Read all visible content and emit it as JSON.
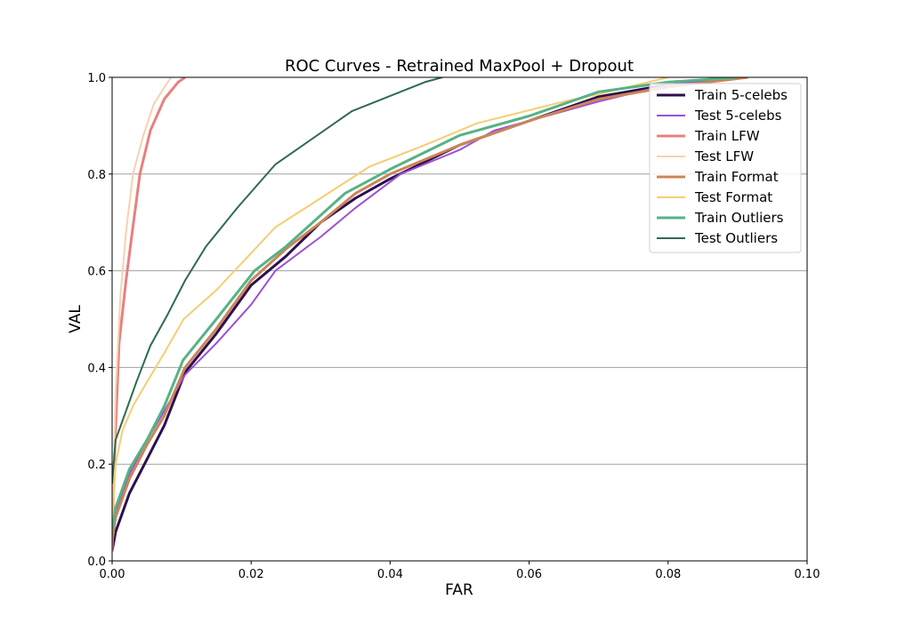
{
  "chart_data": {
    "type": "line",
    "title": "ROC Curves - Retrained MaxPool + Dropout",
    "xlabel": "FAR",
    "ylabel": "VAL",
    "xlim": [
      0.0,
      0.1
    ],
    "ylim": [
      0.0,
      1.0
    ],
    "xticks": [
      "0.00",
      "0.02",
      "0.04",
      "0.06",
      "0.08",
      "0.10"
    ],
    "yticks": [
      "0.0",
      "0.2",
      "0.4",
      "0.6",
      "0.8",
      "1.0"
    ],
    "grid": "horizontal",
    "legend_position": "top-right",
    "series": [
      {
        "name": "Train 5-celebs",
        "color": "#2d0f4f",
        "width": 3,
        "points": [
          [
            0,
            0.02
          ],
          [
            0.0005,
            0.06
          ],
          [
            0.0025,
            0.14
          ],
          [
            0.005,
            0.21
          ],
          [
            0.0075,
            0.28
          ],
          [
            0.0105,
            0.39
          ],
          [
            0.015,
            0.47
          ],
          [
            0.02,
            0.57
          ],
          [
            0.025,
            0.63
          ],
          [
            0.03,
            0.7
          ],
          [
            0.035,
            0.75
          ],
          [
            0.04,
            0.79
          ],
          [
            0.05,
            0.86
          ],
          [
            0.06,
            0.91
          ],
          [
            0.07,
            0.96
          ],
          [
            0.08,
            0.985
          ],
          [
            0.09,
            1.0
          ]
        ]
      },
      {
        "name": "Test 5-celebs",
        "color": "#9b4fd6",
        "width": 2,
        "points": [
          [
            0,
            0.03
          ],
          [
            0.0005,
            0.1
          ],
          [
            0.0025,
            0.18
          ],
          [
            0.005,
            0.25
          ],
          [
            0.0075,
            0.31
          ],
          [
            0.0105,
            0.385
          ],
          [
            0.015,
            0.45
          ],
          [
            0.02,
            0.53
          ],
          [
            0.0235,
            0.6
          ],
          [
            0.03,
            0.67
          ],
          [
            0.035,
            0.73
          ],
          [
            0.0415,
            0.8
          ],
          [
            0.05,
            0.85
          ],
          [
            0.055,
            0.89
          ],
          [
            0.07,
            0.95
          ],
          [
            0.08,
            0.985
          ],
          [
            0.09,
            1.0
          ]
        ]
      },
      {
        "name": "Train LFW",
        "color": "#e88080",
        "width": 3,
        "points": [
          [
            0,
            0.02
          ],
          [
            0.0003,
            0.2
          ],
          [
            0.001,
            0.45
          ],
          [
            0.002,
            0.58
          ],
          [
            0.0028,
            0.67
          ],
          [
            0.004,
            0.8
          ],
          [
            0.0055,
            0.89
          ],
          [
            0.0075,
            0.955
          ],
          [
            0.0095,
            0.99
          ],
          [
            0.0105,
            1.0
          ]
        ]
      },
      {
        "name": "Test LFW",
        "color": "#f5d2b0",
        "width": 2,
        "points": [
          [
            0,
            0.05
          ],
          [
            0.0005,
            0.35
          ],
          [
            0.0012,
            0.55
          ],
          [
            0.002,
            0.68
          ],
          [
            0.003,
            0.8
          ],
          [
            0.0045,
            0.88
          ],
          [
            0.006,
            0.945
          ],
          [
            0.008,
            0.99
          ],
          [
            0.0085,
            1.0
          ]
        ]
      },
      {
        "name": "Train Format",
        "color": "#cc8558",
        "width": 3,
        "points": [
          [
            0,
            0.04
          ],
          [
            0.0005,
            0.09
          ],
          [
            0.0025,
            0.17
          ],
          [
            0.005,
            0.24
          ],
          [
            0.0075,
            0.3
          ],
          [
            0.0105,
            0.4
          ],
          [
            0.015,
            0.48
          ],
          [
            0.02,
            0.58
          ],
          [
            0.025,
            0.645
          ],
          [
            0.03,
            0.7
          ],
          [
            0.035,
            0.76
          ],
          [
            0.04,
            0.8
          ],
          [
            0.05,
            0.86
          ],
          [
            0.06,
            0.91
          ],
          [
            0.07,
            0.955
          ],
          [
            0.08,
            0.98
          ],
          [
            0.0915,
            1.0
          ]
        ]
      },
      {
        "name": "Test Format",
        "color": "#f7cd72",
        "width": 2,
        "points": [
          [
            0,
            0.07
          ],
          [
            0.0005,
            0.2
          ],
          [
            0.0015,
            0.27
          ],
          [
            0.003,
            0.32
          ],
          [
            0.005,
            0.37
          ],
          [
            0.0075,
            0.43
          ],
          [
            0.0103,
            0.5
          ],
          [
            0.015,
            0.56
          ],
          [
            0.0235,
            0.69
          ],
          [
            0.03,
            0.75
          ],
          [
            0.037,
            0.815
          ],
          [
            0.045,
            0.86
          ],
          [
            0.0525,
            0.905
          ],
          [
            0.065,
            0.95
          ],
          [
            0.07,
            0.965
          ],
          [
            0.08,
            1.0
          ]
        ]
      },
      {
        "name": "Train Outliers",
        "color": "#55b386",
        "width": 3,
        "points": [
          [
            0,
            0.06
          ],
          [
            0.0005,
            0.11
          ],
          [
            0.0025,
            0.19
          ],
          [
            0.005,
            0.25
          ],
          [
            0.0075,
            0.32
          ],
          [
            0.0102,
            0.415
          ],
          [
            0.015,
            0.5
          ],
          [
            0.0205,
            0.6
          ],
          [
            0.025,
            0.65
          ],
          [
            0.0335,
            0.76
          ],
          [
            0.04,
            0.81
          ],
          [
            0.05,
            0.88
          ],
          [
            0.06,
            0.92
          ],
          [
            0.07,
            0.97
          ],
          [
            0.08,
            0.99
          ],
          [
            0.09,
            1.0
          ]
        ]
      },
      {
        "name": "Test Outliers",
        "color": "#2f6b4f",
        "width": 2,
        "points": [
          [
            0,
            0.16
          ],
          [
            0.0005,
            0.25
          ],
          [
            0.002,
            0.31
          ],
          [
            0.0035,
            0.37
          ],
          [
            0.0055,
            0.445
          ],
          [
            0.008,
            0.51
          ],
          [
            0.0105,
            0.58
          ],
          [
            0.0135,
            0.65
          ],
          [
            0.018,
            0.73
          ],
          [
            0.0235,
            0.82
          ],
          [
            0.0345,
            0.93
          ],
          [
            0.045,
            0.99
          ],
          [
            0.0475,
            1.0
          ]
        ]
      }
    ]
  }
}
